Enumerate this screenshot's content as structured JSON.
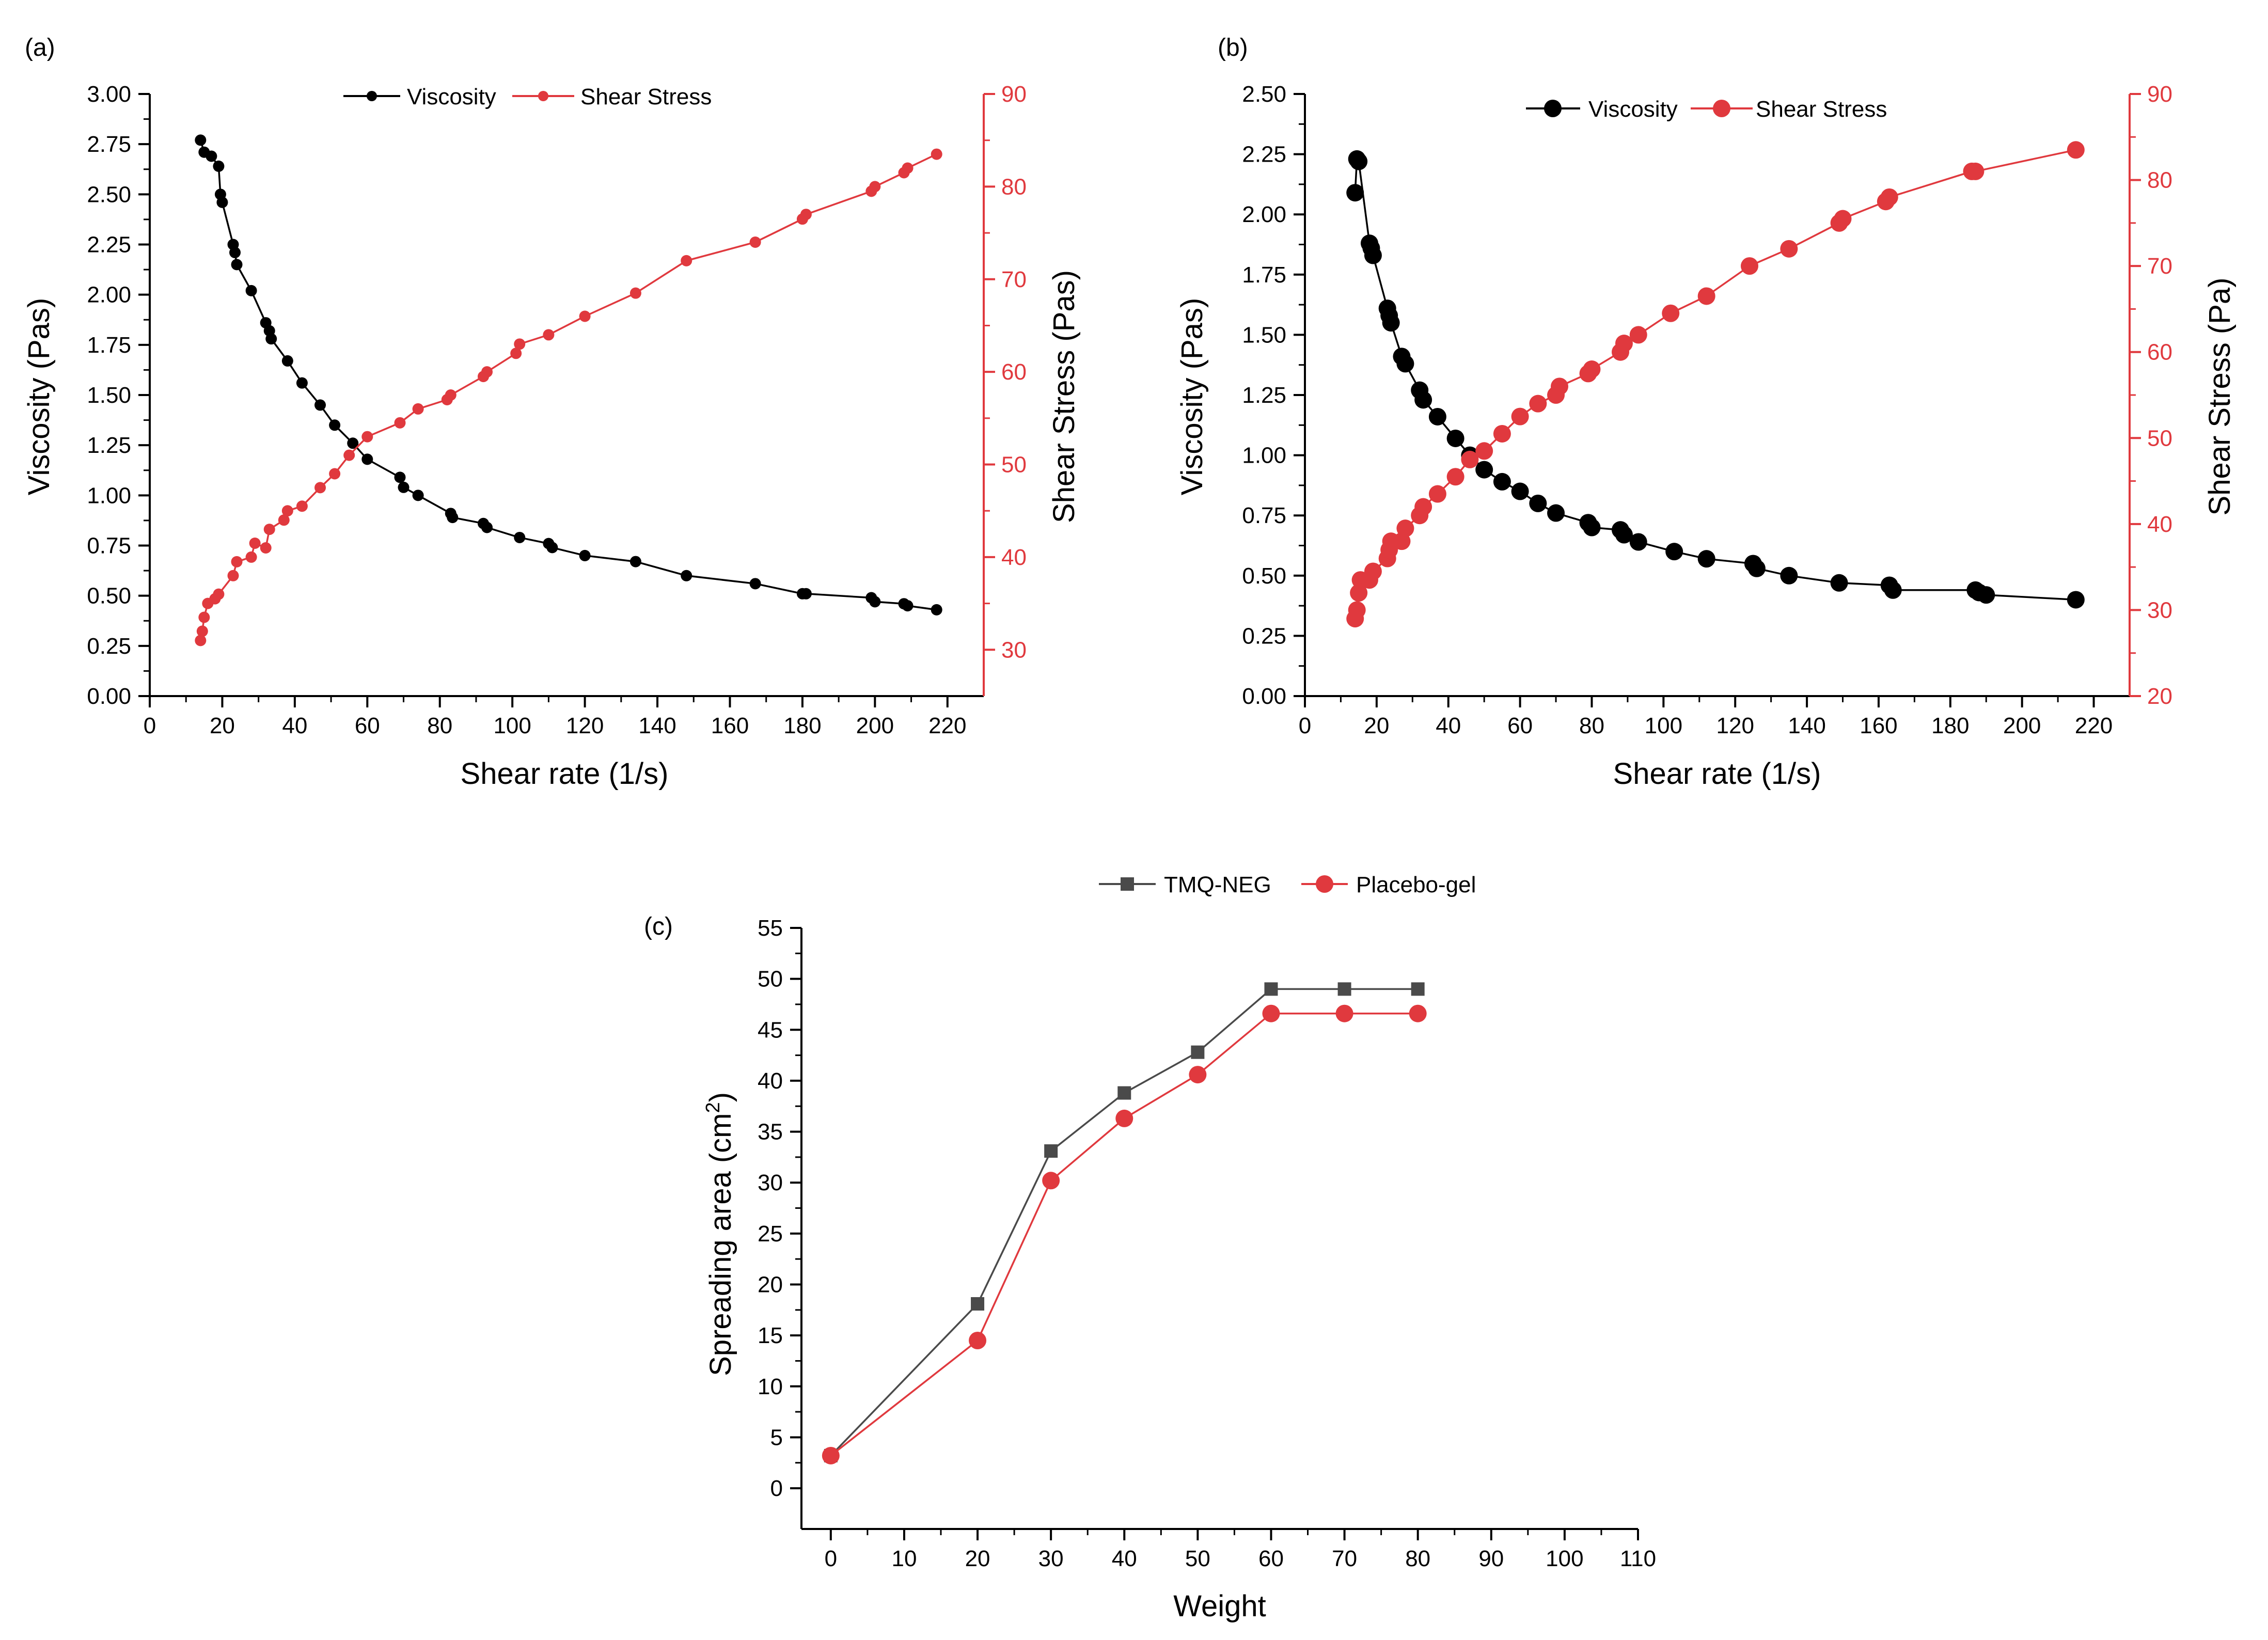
{
  "colors": {
    "black_series": "#000000",
    "red_series": "#e0393e",
    "gray_series": "#4a4a4a",
    "axis": "#000000"
  },
  "chart_data": [
    {
      "panel_label": "(a)",
      "type": "line",
      "xlabel": "Shear rate (1/s)",
      "ylabel": "Viscosity (Pas)",
      "y2label": "Shear Stress (Pas)",
      "xlim": [
        0,
        230
      ],
      "ylim": [
        0,
        3
      ],
      "y2lim": [
        25,
        90
      ],
      "xticks": [
        "0",
        "20",
        "40",
        "60",
        "80",
        "100",
        "120",
        "140",
        "160",
        "180",
        "200",
        "220"
      ],
      "yticks": [
        "0.00",
        "0.25",
        "0.50",
        "0.75",
        "1.00",
        "1.25",
        "1.50",
        "1.75",
        "2.00",
        "2.25",
        "2.50",
        "2.75",
        "3.00"
      ],
      "y2ticks": [
        "30",
        "40",
        "50",
        "60",
        "70",
        "80",
        "90"
      ],
      "legend_position": "top-center",
      "series": [
        {
          "name": "Viscosity",
          "axis": "left",
          "color": "#000000",
          "marker": "circle",
          "x": [
            14,
            15,
            17,
            19,
            19.5,
            20,
            23,
            23.5,
            24,
            28,
            32,
            33,
            33.5,
            38,
            42,
            47,
            51,
            56,
            60,
            69,
            70,
            74,
            83,
            83.5,
            92,
            93,
            102,
            110,
            111,
            120,
            134,
            148,
            167,
            180,
            181,
            199,
            200,
            208,
            209,
            217
          ],
          "y": [
            2.77,
            2.71,
            2.69,
            2.64,
            2.5,
            2.46,
            2.25,
            2.21,
            2.15,
            2.02,
            1.86,
            1.82,
            1.78,
            1.67,
            1.56,
            1.45,
            1.35,
            1.26,
            1.18,
            1.09,
            1.04,
            1.0,
            0.91,
            0.89,
            0.86,
            0.84,
            0.79,
            0.76,
            0.74,
            0.7,
            0.67,
            0.6,
            0.56,
            0.51,
            0.51,
            0.49,
            0.47,
            0.46,
            0.45,
            0.43
          ]
        },
        {
          "name": "Shear Stress",
          "axis": "right",
          "color": "#e0393e",
          "marker": "circle",
          "x": [
            14,
            14.5,
            15,
            16,
            18,
            19,
            23,
            24,
            28,
            29,
            32,
            33,
            37,
            38,
            42,
            47,
            51,
            55,
            60,
            69,
            74,
            82,
            83,
            92,
            93,
            101,
            102,
            110,
            120,
            134,
            148,
            167,
            180,
            181,
            199,
            200,
            208,
            209,
            217
          ],
          "y": [
            31,
            32,
            33.5,
            35,
            35.5,
            36,
            38,
            39.5,
            40,
            41.5,
            41,
            43,
            44,
            45,
            45.5,
            47.5,
            49,
            51,
            53,
            54.5,
            56,
            57,
            57.5,
            59.5,
            60,
            62,
            63,
            64,
            66,
            68.5,
            72,
            74,
            76.5,
            77,
            79.5,
            80,
            81.5,
            82,
            83.5
          ]
        }
      ]
    },
    {
      "panel_label": "(b)",
      "type": "line",
      "xlabel": "Shear rate (1/s)",
      "ylabel": "Viscosity (Pas)",
      "y2label": "Shear Stress (Pa)",
      "xlim": [
        0,
        230
      ],
      "ylim": [
        0,
        2.5
      ],
      "y2lim": [
        20,
        90
      ],
      "xticks": [
        "0",
        "20",
        "40",
        "60",
        "80",
        "100",
        "120",
        "140",
        "160",
        "180",
        "200",
        "220"
      ],
      "yticks": [
        "0.00",
        "0.25",
        "0.50",
        "0.75",
        "1.00",
        "1.25",
        "1.50",
        "1.75",
        "2.00",
        "2.25",
        "2.50"
      ],
      "y2ticks": [
        "20",
        "30",
        "40",
        "50",
        "60",
        "70",
        "80",
        "90"
      ],
      "legend_position": "top-center",
      "series": [
        {
          "name": "Viscosity",
          "axis": "left",
          "color": "#000000",
          "marker": "circle",
          "x": [
            14,
            14.5,
            15,
            18,
            18.5,
            19,
            23,
            23.5,
            24,
            27,
            28,
            32,
            33,
            37,
            42,
            46,
            50,
            55,
            60,
            65,
            70,
            79,
            80,
            88,
            89,
            93,
            103,
            112,
            125,
            126,
            135,
            149,
            163,
            164,
            187,
            188,
            190,
            215
          ],
          "y": [
            2.09,
            2.23,
            2.22,
            1.88,
            1.86,
            1.83,
            1.61,
            1.58,
            1.55,
            1.41,
            1.38,
            1.27,
            1.23,
            1.16,
            1.07,
            1.0,
            0.94,
            0.89,
            0.85,
            0.8,
            0.76,
            0.72,
            0.7,
            0.69,
            0.67,
            0.64,
            0.6,
            0.57,
            0.55,
            0.53,
            0.5,
            0.47,
            0.46,
            0.44,
            0.44,
            0.43,
            0.42,
            0.4
          ]
        },
        {
          "name": "Shear Stress",
          "axis": "right",
          "color": "#e0393e",
          "marker": "circle",
          "x": [
            14,
            14.5,
            15,
            15.5,
            18,
            19,
            23,
            23.5,
            24,
            27,
            28,
            32,
            33,
            37,
            42,
            46,
            50,
            55,
            60,
            65,
            70,
            71,
            79,
            80,
            88,
            89,
            93,
            102,
            112,
            124,
            135,
            149,
            150,
            162,
            163,
            186,
            187,
            215
          ],
          "y": [
            29,
            30,
            32,
            33.5,
            33.5,
            34.5,
            36,
            37,
            38,
            38,
            39.5,
            41,
            42,
            43.5,
            45.5,
            47.5,
            48.5,
            50.5,
            52.5,
            54,
            55,
            56,
            57.5,
            58,
            60,
            61,
            62,
            64.5,
            66.5,
            70,
            72,
            75,
            75.5,
            77.5,
            78,
            81,
            81,
            83.5
          ]
        }
      ]
    },
    {
      "panel_label": "(c)",
      "type": "line",
      "xlabel": "Weight",
      "ylabel": "Spreading area (cm",
      "ylabel_sup": "2",
      "ylabel_close": ")",
      "xlim": [
        -4,
        110
      ],
      "ylim": [
        -4,
        55
      ],
      "xticks": [
        "0",
        "10",
        "20",
        "30",
        "40",
        "50",
        "60",
        "70",
        "80",
        "90",
        "100",
        "110"
      ],
      "yticks": [
        "0",
        "5",
        "10",
        "15",
        "20",
        "25",
        "30",
        "35",
        "40",
        "45",
        "50",
        "55"
      ],
      "legend_position": "top-center",
      "series": [
        {
          "name": "TMQ-NEG",
          "color": "#4a4a4a",
          "marker": "square",
          "x": [
            0,
            20,
            30,
            40,
            50,
            60,
            70,
            80
          ],
          "y": [
            3.2,
            18.1,
            33.1,
            38.8,
            42.8,
            49,
            49,
            49
          ]
        },
        {
          "name": "Placebo-gel",
          "color": "#e0393e",
          "marker": "circle",
          "x": [
            0,
            20,
            30,
            40,
            50,
            60,
            70,
            80
          ],
          "y": [
            3.2,
            14.5,
            30.2,
            36.3,
            40.6,
            46.6,
            46.6,
            46.6
          ]
        }
      ]
    }
  ]
}
